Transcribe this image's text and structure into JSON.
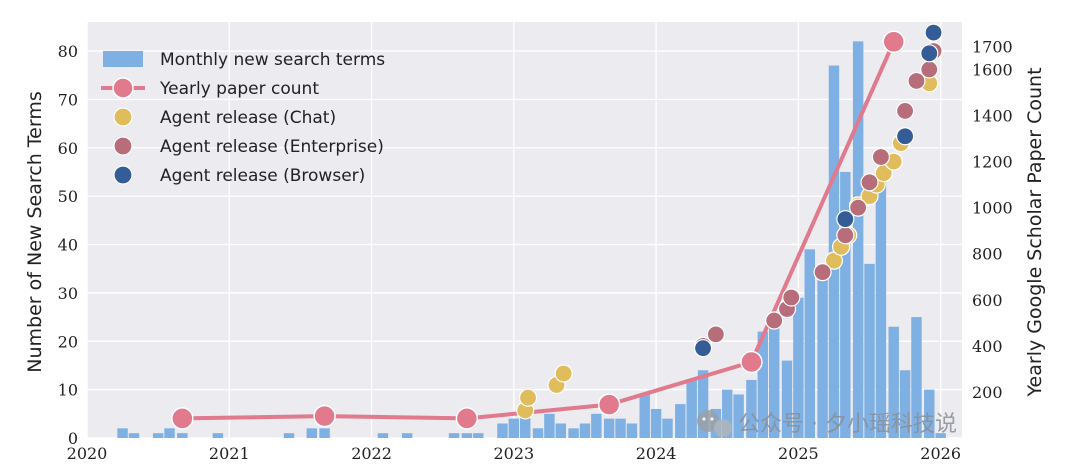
{
  "chart_data": {
    "type": "bar",
    "ylabel": "Number of New Search Terms",
    "y2label": "Yearly Google Scholar Paper Count",
    "xlim": [
      2020,
      2026.15
    ],
    "ylim": [
      0,
      86
    ],
    "y2lim": [
      0,
      1806
    ],
    "xticks": [
      "2020",
      "2021",
      "2022",
      "2023",
      "2024",
      "2025",
      "2026"
    ],
    "yticks": [
      "0",
      "10",
      "20",
      "30",
      "40",
      "50",
      "60",
      "70",
      "80"
    ],
    "y2ticks": [
      "200",
      "400",
      "600",
      "800",
      "1000",
      "1200",
      "1400",
      "1600",
      "1700"
    ],
    "grid": true,
    "legend_position": "top-left",
    "colors": {
      "bars": "#7fb0e3",
      "paper_line": "#e07a8c",
      "chat": "#e0bc5d",
      "enterprise": "#b86e7a",
      "browser": "#345c97"
    },
    "series": [
      {
        "name": "Monthly new search terms",
        "kind": "bar",
        "x": [
          2020.25,
          2020.33,
          2020.5,
          2020.58,
          2020.67,
          2020.92,
          2021.42,
          2021.58,
          2021.67,
          2022.08,
          2022.25,
          2022.58,
          2022.67,
          2022.75,
          2022.92,
          2023.0,
          2023.08,
          2023.17,
          2023.25,
          2023.33,
          2023.42,
          2023.5,
          2023.58,
          2023.67,
          2023.75,
          2023.83,
          2023.92,
          2024.0,
          2024.08,
          2024.17,
          2024.25,
          2024.33,
          2024.42,
          2024.5,
          2024.58,
          2024.67,
          2024.75,
          2024.83,
          2024.92,
          2025.0,
          2025.08,
          2025.17,
          2025.25,
          2025.33,
          2025.42,
          2025.5,
          2025.58,
          2025.67,
          2025.75,
          2025.83,
          2025.92,
          2026.0
        ],
        "values": [
          2,
          1,
          1,
          2,
          1,
          1,
          1,
          2,
          2,
          1,
          1,
          1,
          1,
          1,
          3,
          4,
          5,
          2,
          5,
          3,
          2,
          3,
          5,
          4,
          4,
          3,
          9,
          6,
          4,
          7,
          12,
          14,
          6,
          10,
          9,
          12,
          22,
          24,
          16,
          29,
          39,
          34,
          77,
          55,
          82,
          36,
          53,
          23,
          14,
          25,
          10,
          1
        ]
      },
      {
        "name": "Yearly paper count",
        "kind": "line",
        "x": [
          2020.67,
          2021.67,
          2022.67,
          2023.67,
          2024.67,
          2025.67
        ],
        "values": [
          85,
          95,
          85,
          145,
          330,
          1720
        ]
      },
      {
        "name": "Agent release (Chat)",
        "kind": "scatter",
        "x": [
          2023.08,
          2023.1,
          2023.3,
          2023.35,
          2025.25,
          2025.3,
          2025.35,
          2025.42,
          2025.5,
          2025.55,
          2025.6,
          2025.67,
          2025.72,
          2025.92
        ],
        "values": [
          120,
          175,
          230,
          280,
          770,
          830,
          880,
          1010,
          1050,
          1100,
          1150,
          1200,
          1280,
          1540
        ]
      },
      {
        "name": "Agent release (Enterprise)",
        "kind": "scatter",
        "x": [
          2024.33,
          2024.42,
          2024.83,
          2024.92,
          2024.95,
          2025.17,
          2025.33,
          2025.42,
          2025.5,
          2025.58,
          2025.75,
          2025.83,
          2025.92,
          2025.95
        ],
        "values": [
          400,
          450,
          510,
          560,
          610,
          720,
          880,
          1000,
          1110,
          1220,
          1420,
          1550,
          1600,
          1680
        ]
      },
      {
        "name": "Agent release (Browser)",
        "kind": "scatter",
        "x": [
          2024.33,
          2025.33,
          2025.75,
          2025.92,
          2025.95
        ],
        "values": [
          390,
          950,
          1310,
          1670,
          1760
        ]
      }
    ]
  },
  "watermark": {
    "text": "公众号 · 夕小瑶科技说",
    "icon": "wechat-icon"
  }
}
